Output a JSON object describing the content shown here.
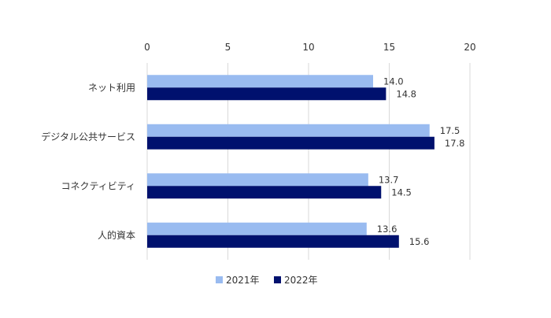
{
  "chart_data": {
    "type": "bar",
    "orientation": "horizontal",
    "categories": [
      "ネット利用",
      "デジタル公共サービス",
      "コネクティビティ",
      "人的資本"
    ],
    "x_ticks": [
      0,
      5,
      10,
      15,
      20
    ],
    "xlim": [
      0,
      20
    ],
    "x_axis_position": "top",
    "grid": true,
    "legend_position": "bottom",
    "series": [
      {
        "name": "2021年",
        "color": "#99bbf0",
        "values": [
          14.0,
          17.5,
          13.7,
          13.6
        ],
        "labels": [
          "14.0",
          "17.5",
          "13.7",
          "13.6"
        ]
      },
      {
        "name": "2022年",
        "color": "#00116e",
        "values": [
          14.8,
          17.8,
          14.5,
          15.6
        ],
        "labels": [
          "14.8",
          "17.8",
          "14.5",
          "15.6"
        ]
      }
    ]
  }
}
